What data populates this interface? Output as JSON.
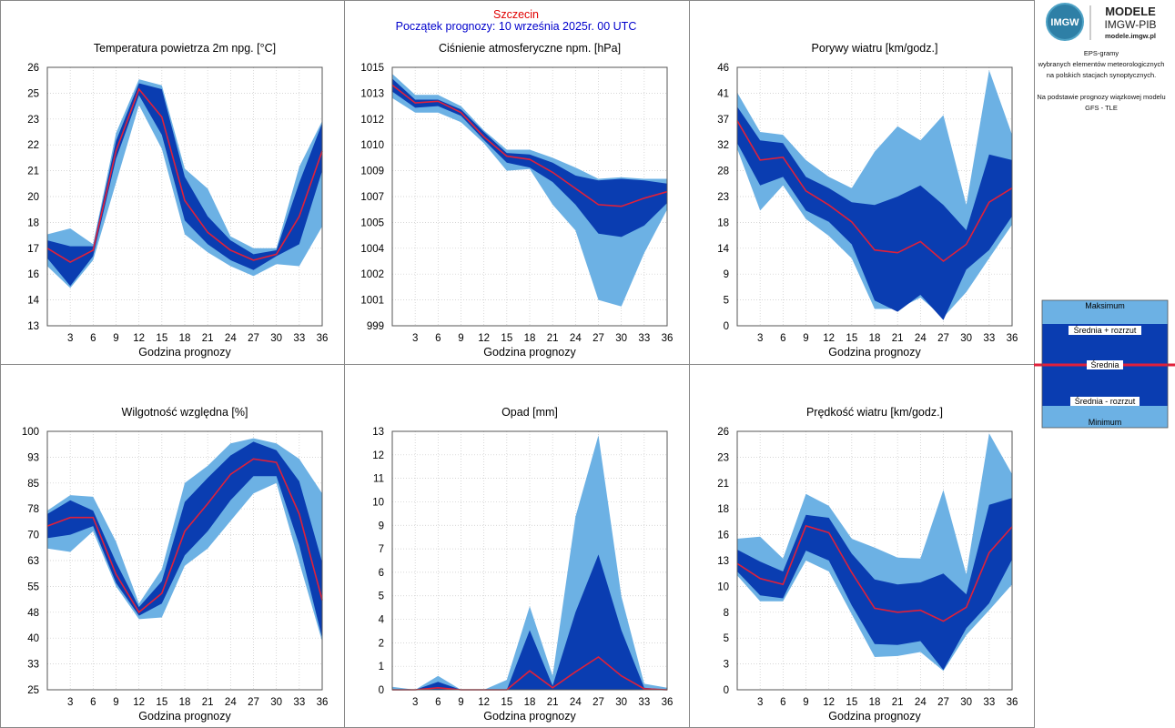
{
  "header": {
    "station": "Szczecin",
    "forecast_start": "Początek prognozy: 10 września 2025r. 00 UTC"
  },
  "sidebar": {
    "logo_text": "IMGW",
    "logo_title_1": "MODELE",
    "logo_title_2": "IMGW-PIB",
    "logo_url": "modele.imgw.pl",
    "desc_lines": [
      "EPS-gramy",
      "wybranych elementów meteorologicznych",
      "na polskich stacjach  synoptycznych.",
      "",
      "Na podstawie prognozy wiązkowej modelu",
      "GFS - TLE"
    ],
    "legend": {
      "max": "Maksimum",
      "mean_plus": "Średnia + rozrzut",
      "mean": "Średnia",
      "mean_minus": "Średnia - rozrzut",
      "min": "Minimum"
    }
  },
  "colors": {
    "outer_band": "#6cb1e4",
    "inner_band": "#0a3db1",
    "mean_line": "#e0203a",
    "frame": "#888888"
  },
  "xlabel": "Godzina prognozy",
  "chart_data": [
    {
      "type": "area",
      "title": "Temperatura powietrza 2m npg. [°C]",
      "xlabel": "Godzina prognozy",
      "x": [
        0,
        3,
        6,
        9,
        12,
        15,
        18,
        21,
        24,
        27,
        30,
        33,
        36
      ],
      "xticks": [
        3,
        6,
        9,
        12,
        15,
        18,
        21,
        24,
        27,
        30,
        33,
        36
      ],
      "yticks": [
        "13",
        "14",
        "16",
        "17",
        "18",
        "20",
        "21",
        "22",
        "23",
        "25",
        "26"
      ],
      "ylim": [
        13,
        26
      ],
      "series": {
        "min": [
          16.0,
          14.9,
          16.3,
          20.2,
          24.1,
          21.9,
          17.6,
          16.7,
          16.0,
          15.5,
          16.1,
          16.0,
          18.0
        ],
        "lower": [
          16.4,
          15.0,
          16.5,
          21.4,
          24.6,
          22.6,
          18.3,
          17.1,
          16.3,
          15.8,
          16.5,
          17.1,
          20.8
        ],
        "mean": [
          16.9,
          16.2,
          16.8,
          21.8,
          24.9,
          23.5,
          19.3,
          17.7,
          16.8,
          16.3,
          16.6,
          18.5,
          21.8
        ],
        "upper": [
          17.3,
          17.0,
          17.0,
          22.3,
          25.2,
          24.9,
          20.5,
          18.5,
          17.3,
          16.6,
          16.8,
          20.2,
          23.2
        ],
        "max": [
          17.6,
          17.9,
          17.1,
          22.7,
          25.4,
          25.1,
          20.9,
          19.9,
          17.5,
          16.9,
          16.9,
          21.0,
          23.3
        ]
      }
    },
    {
      "type": "area",
      "title": "Ciśnienie atmosferyczne npm. [hPa]",
      "xlabel": "Godzina prognozy",
      "x": [
        0,
        3,
        6,
        9,
        12,
        15,
        18,
        21,
        24,
        27,
        30,
        33,
        36
      ],
      "xticks": [
        3,
        6,
        9,
        12,
        15,
        18,
        21,
        24,
        27,
        30,
        33,
        36
      ],
      "yticks": [
        "999",
        "1001",
        "1002",
        "1004",
        "1005",
        "1007",
        "1009",
        "1010",
        "1012",
        "1013",
        "1015"
      ],
      "ylim": [
        999,
        1015
      ],
      "series": {
        "min": [
          1013.1,
          1012.2,
          1012.2,
          1011.6,
          1010.3,
          1008.6,
          1008.7,
          1006.5,
          1004.9,
          1000.6,
          1000.2,
          1003.5,
          1006.2
        ],
        "lower": [
          1013.5,
          1012.5,
          1012.6,
          1012.0,
          1010.5,
          1009.1,
          1008.8,
          1007.9,
          1006.5,
          1004.7,
          1004.5,
          1005.2,
          1006.6
        ],
        "mean": [
          1013.9,
          1012.8,
          1012.9,
          1012.2,
          1010.7,
          1009.5,
          1009.3,
          1008.5,
          1007.5,
          1006.5,
          1006.4,
          1006.9,
          1007.3
        ],
        "upper": [
          1014.3,
          1013.0,
          1013.0,
          1012.4,
          1011.0,
          1009.7,
          1009.6,
          1009.1,
          1008.3,
          1008.0,
          1008.1,
          1008.0,
          1007.8
        ],
        "max": [
          1014.6,
          1013.3,
          1013.3,
          1012.6,
          1011.1,
          1009.9,
          1009.9,
          1009.4,
          1008.8,
          1008.1,
          1008.2,
          1008.1,
          1008.1
        ]
      }
    },
    {
      "type": "area",
      "title": "Porywy wiatru [km/godz.]",
      "xlabel": "Godzina prognozy",
      "x": [
        0,
        3,
        6,
        9,
        12,
        15,
        18,
        21,
        24,
        27,
        30,
        33,
        36
      ],
      "xticks": [
        3,
        6,
        9,
        12,
        15,
        18,
        21,
        24,
        27,
        30,
        33,
        36
      ],
      "yticks": [
        "0",
        "5",
        "9",
        "14",
        "18",
        "23",
        "28",
        "32",
        "37",
        "41",
        "46"
      ],
      "ylim": [
        0,
        46
      ],
      "series": {
        "min": [
          31.5,
          20.5,
          25.0,
          19.0,
          16.0,
          12.0,
          3.0,
          3.0,
          5.0,
          1.5,
          6.0,
          12.0,
          18.0
        ],
        "lower": [
          32.5,
          25.0,
          26.5,
          20.5,
          18.5,
          14.5,
          4.5,
          2.5,
          5.5,
          1.0,
          10.0,
          13.5,
          19.5
        ],
        "mean": [
          36.5,
          29.5,
          30.0,
          24.0,
          21.5,
          18.5,
          13.5,
          13.0,
          15.0,
          11.5,
          14.5,
          22.0,
          24.5
        ],
        "upper": [
          39.0,
          33.0,
          32.5,
          26.5,
          24.5,
          22.0,
          21.5,
          23.0,
          25.0,
          21.5,
          17.0,
          30.5,
          29.5
        ],
        "max": [
          41.5,
          34.5,
          34.0,
          29.5,
          26.5,
          24.5,
          31.0,
          35.5,
          33.0,
          37.5,
          21.5,
          45.5,
          34.0
        ]
      }
    },
    {
      "type": "area",
      "title": "Wilgotność względna [%]",
      "xlabel": "Godzina prognozy",
      "x": [
        0,
        3,
        6,
        9,
        12,
        15,
        18,
        21,
        24,
        27,
        30,
        33,
        36
      ],
      "xticks": [
        3,
        6,
        9,
        12,
        15,
        18,
        21,
        24,
        27,
        30,
        33,
        36
      ],
      "yticks": [
        "25",
        "33",
        "40",
        "48",
        "55",
        "63",
        "70",
        "78",
        "85",
        "93",
        "100"
      ],
      "ylim": [
        25,
        100
      ],
      "series": {
        "min": [
          66.0,
          65.0,
          71.0,
          55.0,
          45.5,
          46.0,
          61.0,
          66.0,
          74.0,
          82.0,
          85.0,
          62.0,
          39.0
        ],
        "lower": [
          69.0,
          70.0,
          72.5,
          56.0,
          46.5,
          50.0,
          64.0,
          71.0,
          80.0,
          87.0,
          87.0,
          67.0,
          40.0
        ],
        "mean": [
          72.5,
          75.0,
          75.0,
          58.5,
          47.5,
          53.0,
          71.0,
          79.0,
          87.5,
          92.0,
          91.0,
          76.0,
          51.0
        ],
        "upper": [
          76.0,
          80.0,
          77.0,
          62.0,
          49.0,
          56.5,
          79.5,
          86.5,
          93.0,
          97.0,
          94.5,
          85.5,
          62.0
        ],
        "max": [
          77.0,
          81.5,
          81.0,
          68.0,
          50.0,
          60.0,
          85.0,
          90.0,
          96.5,
          98.0,
          96.5,
          92.0,
          82.0
        ]
      }
    },
    {
      "type": "area",
      "title": "Opad [mm]",
      "xlabel": "Godzina prognozy",
      "x": [
        0,
        3,
        6,
        9,
        12,
        15,
        18,
        21,
        24,
        27,
        30,
        33,
        36
      ],
      "xticks": [
        3,
        6,
        9,
        12,
        15,
        18,
        21,
        24,
        27,
        30,
        33,
        36
      ],
      "yticks": [
        "0",
        "1",
        "2",
        "4",
        "5",
        "6",
        "7",
        "9",
        "10",
        "11",
        "12",
        "13"
      ],
      "ylim": [
        0,
        13
      ],
      "series": {
        "min": [
          0,
          0,
          0,
          0,
          0,
          0,
          0,
          0,
          0,
          0,
          0,
          0,
          0
        ],
        "lower": [
          0,
          0,
          0,
          0,
          0,
          0,
          0,
          0,
          0,
          0,
          0,
          0,
          0
        ],
        "mean": [
          0,
          0,
          0.1,
          0,
          0,
          0,
          0.95,
          0.1,
          0.9,
          1.65,
          0.7,
          0.05,
          0
        ],
        "upper": [
          0,
          0,
          0.4,
          0,
          0,
          0,
          3.0,
          0.2,
          3.9,
          6.8,
          3.0,
          0.1,
          0
        ],
        "max": [
          0.15,
          0,
          0.7,
          0,
          0,
          0.5,
          4.2,
          0.7,
          8.7,
          12.8,
          4.7,
          0.3,
          0.1
        ]
      }
    },
    {
      "type": "area",
      "title": "Prędkość wiatru [km/godz.]",
      "xlabel": "Godzina prognozy",
      "x": [
        0,
        3,
        6,
        9,
        12,
        15,
        18,
        21,
        24,
        27,
        30,
        33,
        36
      ],
      "xticks": [
        3,
        6,
        9,
        12,
        15,
        18,
        21,
        24,
        27,
        30,
        33,
        36
      ],
      "yticks": [
        "0",
        "3",
        "5",
        "8",
        "10",
        "13",
        "16",
        "18",
        "21",
        "23",
        "26"
      ],
      "ylim": [
        0,
        26
      ],
      "series": {
        "min": [
          11.5,
          8.9,
          8.9,
          13.0,
          11.9,
          7.6,
          3.3,
          3.4,
          3.8,
          1.9,
          5.5,
          8.0,
          10.6
        ],
        "lower": [
          11.9,
          9.5,
          9.2,
          14.0,
          13.0,
          8.5,
          4.6,
          4.5,
          4.9,
          2.0,
          6.2,
          8.7,
          13.1
        ],
        "mean": [
          12.7,
          11.2,
          10.6,
          16.5,
          15.8,
          11.8,
          8.2,
          7.8,
          8.0,
          6.9,
          8.3,
          13.8,
          16.4
        ],
        "upper": [
          14.1,
          12.9,
          11.9,
          17.6,
          17.3,
          13.7,
          11.1,
          10.6,
          10.8,
          11.7,
          9.6,
          18.6,
          19.3
        ],
        "max": [
          15.2,
          15.4,
          13.2,
          19.7,
          18.5,
          15.2,
          14.3,
          13.3,
          13.2,
          20.1,
          11.6,
          25.8,
          21.7
        ]
      }
    }
  ]
}
